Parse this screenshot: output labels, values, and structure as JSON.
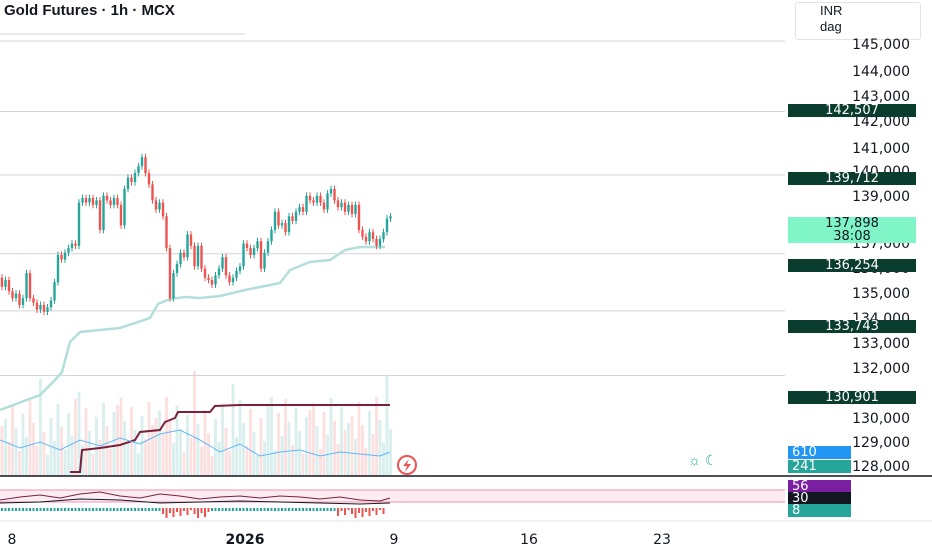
{
  "header": {
    "title": "Gold Futures · 1h · MCX",
    "currency": "INR",
    "unit": "dag"
  },
  "colors": {
    "up": "#26a69a",
    "down": "#ef5350",
    "level_label": "#0b3d2e",
    "current_price_bg": "#7ff5c8",
    "blue_label": "#2196f3",
    "teal_label": "#26a69a",
    "maroon": "#7b1f3a",
    "purple_label": "#7b1fa2"
  },
  "price_axis": {
    "ticks": [
      "145,000",
      "144,000",
      "143,000",
      "142,000",
      "141,000",
      "140,000",
      "139,000",
      "137,000",
      "136,000",
      "135,000",
      "134,000",
      "133,000",
      "132,000",
      "130,000",
      "129,000",
      "128,000"
    ]
  },
  "price_labels": [
    {
      "text": "142,507",
      "style": "level"
    },
    {
      "text": "139,712",
      "style": "level"
    },
    {
      "text": "136,254",
      "style": "level"
    },
    {
      "text": "133,743",
      "style": "level"
    },
    {
      "text": "130,901",
      "style": "level"
    }
  ],
  "current_price": {
    "price": "137,898",
    "countdown": "38:08"
  },
  "indicator_labels": [
    {
      "text": "610",
      "style": "blue"
    },
    {
      "text": "241",
      "style": "teal"
    },
    {
      "text": "56",
      "style": "purple"
    },
    {
      "text": "30",
      "style": "black"
    },
    {
      "text": "8",
      "style": "teal"
    }
  ],
  "time_axis": {
    "ticks": [
      {
        "label": "8",
        "bold": false
      },
      {
        "label": "2026",
        "bold": true
      },
      {
        "label": "9",
        "bold": false
      },
      {
        "label": "16",
        "bold": false
      },
      {
        "label": "23",
        "bold": false
      }
    ]
  },
  "chart_data": {
    "type": "candlestick",
    "title": "Gold Futures · 1h · MCX",
    "y_unit": "INR",
    "ylim": [
      128000,
      145500
    ],
    "horizontal_levels": [
      142507,
      139712,
      136254,
      133743,
      130901
    ],
    "last_price": 137898,
    "series": [
      {
        "name": "price",
        "points": [
          [
            135200,
            134800
          ],
          [
            134800,
            135100
          ],
          [
            135100,
            134600
          ],
          [
            134600,
            134300
          ],
          [
            134300,
            134500
          ],
          [
            134500,
            134000
          ],
          [
            134000,
            134300
          ],
          [
            134300,
            135400
          ],
          [
            135400,
            134300
          ],
          [
            134300,
            134100
          ],
          [
            134100,
            133800
          ],
          [
            133800,
            134000
          ],
          [
            134000,
            133700
          ],
          [
            133700,
            133900
          ],
          [
            133900,
            134200
          ],
          [
            134200,
            135000
          ],
          [
            135000,
            136200
          ],
          [
            136200,
            136000
          ],
          [
            136000,
            136300
          ],
          [
            136300,
            136500
          ],
          [
            136500,
            136700
          ],
          [
            136700,
            136600
          ],
          [
            136600,
            138500
          ],
          [
            138500,
            138700
          ],
          [
            138700,
            138500
          ],
          [
            138500,
            138700
          ],
          [
            138700,
            138400
          ],
          [
            138400,
            138600
          ],
          [
            138600,
            137300
          ],
          [
            137300,
            138800
          ],
          [
            138800,
            138600
          ],
          [
            138600,
            138400
          ],
          [
            138400,
            138700
          ],
          [
            138700,
            138400
          ],
          [
            138400,
            137500
          ],
          [
            137500,
            139100
          ],
          [
            139100,
            139600
          ],
          [
            139600,
            139400
          ],
          [
            139400,
            139800
          ],
          [
            139800,
            140100
          ],
          [
            140100,
            140500
          ],
          [
            140500,
            139800
          ],
          [
            139800,
            139300
          ],
          [
            139300,
            138600
          ],
          [
            138600,
            138200
          ],
          [
            138200,
            138500
          ],
          [
            138500,
            137900
          ],
          [
            137900,
            136500
          ],
          [
            136500,
            134300
          ],
          [
            134300,
            135400
          ],
          [
            135400,
            135800
          ],
          [
            135800,
            136300
          ],
          [
            136300,
            136100
          ],
          [
            136100,
            137100
          ],
          [
            137100,
            136600
          ],
          [
            136600,
            135700
          ],
          [
            135700,
            136600
          ],
          [
            136600,
            135600
          ],
          [
            135600,
            135200
          ],
          [
            135200,
            135100
          ],
          [
            135100,
            134900
          ],
          [
            134900,
            135300
          ],
          [
            135300,
            135600
          ],
          [
            135600,
            136100
          ],
          [
            136100,
            135300
          ],
          [
            135300,
            135000
          ],
          [
            135000,
            135200
          ],
          [
            135200,
            135500
          ],
          [
            135500,
            135700
          ],
          [
            135700,
            136700
          ],
          [
            136700,
            136500
          ],
          [
            136500,
            136200
          ],
          [
            136200,
            136500
          ],
          [
            136500,
            136800
          ],
          [
            136800,
            135600
          ],
          [
            135600,
            136300
          ],
          [
            136300,
            136800
          ],
          [
            136800,
            137300
          ],
          [
            137300,
            138100
          ],
          [
            138100,
            137500
          ],
          [
            137500,
            137600
          ],
          [
            137600,
            137200
          ],
          [
            137200,
            137900
          ],
          [
            137900,
            137700
          ],
          [
            137700,
            138100
          ],
          [
            138100,
            138300
          ],
          [
            138300,
            138100
          ],
          [
            138100,
            138800
          ],
          [
            138800,
            138600
          ],
          [
            138600,
            138500
          ],
          [
            138500,
            138800
          ],
          [
            138800,
            138500
          ],
          [
            138500,
            138200
          ],
          [
            138200,
            138900
          ],
          [
            138900,
            139100
          ],
          [
            139100,
            138600
          ],
          [
            138600,
            138300
          ],
          [
            138300,
            138500
          ],
          [
            138500,
            138100
          ],
          [
            138100,
            138400
          ],
          [
            138400,
            138000
          ],
          [
            138000,
            138400
          ],
          [
            138400,
            137300
          ],
          [
            137300,
            137000
          ],
          [
            137000,
            136800
          ],
          [
            136800,
            137200
          ],
          [
            137200,
            136900
          ],
          [
            136900,
            136600
          ],
          [
            136600,
            136900
          ],
          [
            136900,
            137200
          ],
          [
            137200,
            137800
          ],
          [
            137800,
            137900
          ]
        ]
      }
    ],
    "price_axis_ticks": [
      "145,000",
      "144,000",
      "143,000",
      "142,000",
      "141,000",
      "140,000",
      "139,000",
      "137,000",
      "136,000",
      "135,000",
      "134,000",
      "133,000",
      "132,000",
      "130,000",
      "129,000",
      "128,000"
    ],
    "time_axis_ticks": [
      "8",
      "2026",
      "9",
      "16",
      "23"
    ]
  }
}
